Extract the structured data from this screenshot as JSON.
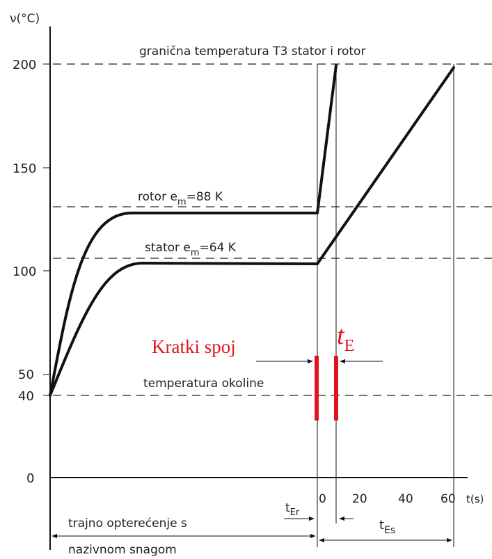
{
  "axes": {
    "y_label": "ν(°C)",
    "y_ticks": [
      "200",
      "150",
      "100",
      "50",
      "40",
      "0"
    ],
    "x_label": "t(s)",
    "x_ticks": [
      "0",
      "20",
      "40",
      "60"
    ]
  },
  "labels": {
    "limit": "granična temperatura T3 stator i rotor",
    "rotor": "rotor e",
    "rotor_sub": "m",
    "rotor_val": "=88 K",
    "stator": "stator e",
    "stator_sub": "m",
    "stator_val": "=64 K",
    "ambient": "temperatura okoline",
    "t_er": "t",
    "t_er_sub": "Er",
    "t_es": "t",
    "t_es_sub": "Es",
    "load_line1": "trajno opterećenje s",
    "load_line2": "nazivnom snagom"
  },
  "annotations": {
    "short_circuit": "Kratki spoj",
    "te_main": "t",
    "te_sub": "E"
  },
  "colors": {
    "ink": "#111111",
    "annotation_red": "#e0141c"
  }
}
